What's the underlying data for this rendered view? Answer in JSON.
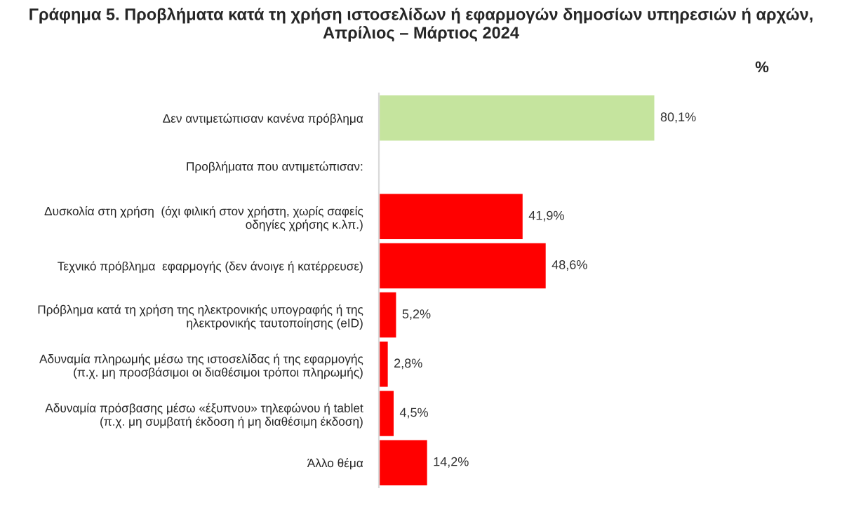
{
  "chart_data": {
    "type": "bar",
    "orientation": "horizontal",
    "title": "Γράφημα 5. Προβλήματα κατά τη χρήση ιστοσελίδων ή εφαρμογών δημοσίων υπηρεσιών ή αρχών,\nΑπρίλιος – Μάρτιος 2024",
    "annotations": [
      "Προβλήματα που αντιμετώπισαν:",
      "%"
    ],
    "categories": [
      "Δεν αντιμετώπισαν κανένα πρόβλημα",
      null,
      "Δυσκολία στη χρήση  (όχι φιλική στον χρήστη, χωρίς σαφείς\nοδηγίες χρήσης κ.λπ.)",
      "Τεχνικό πρόβλημα  εφαρμογής (δεν άνοιγε ή κατέρρευσε)",
      "Πρόβλημα κατά τη χρήση της ηλεκτρονικής υπογραφής ή της\nηλεκτρονικής ταυτοποίησης (eID)",
      "Αδυναμία πληρωμής μέσω της ιστοσελίδας ή της εφαρμογής\n(π.χ. μη προσβάσιμοι οι διαθέσιμοι τρόποι πληρωμής)",
      "Αδυναμία πρόσβασης μέσω «έξυπνου» τηλεφώνου ή tablet\n(π.χ. μη συμβατή έκδοση ή μη διαθέσιμη έκδοση)",
      "Άλλο θέμα"
    ],
    "values": [
      80.1,
      null,
      41.9,
      48.6,
      5.2,
      2.8,
      4.5,
      14.2
    ],
    "value_labels": [
      "80,1%",
      null,
      "41,9%",
      "48,6%",
      "5,2%",
      "2,8%",
      "4,5%",
      "14,2%"
    ],
    "colors": [
      "#c5e49e",
      "#ff0000",
      "#ff0000",
      "#ff0000",
      "#ff0000",
      "#ff0000",
      "#ff0000",
      "#ff0000"
    ],
    "tick_labels": "y",
    "legend": false
  }
}
